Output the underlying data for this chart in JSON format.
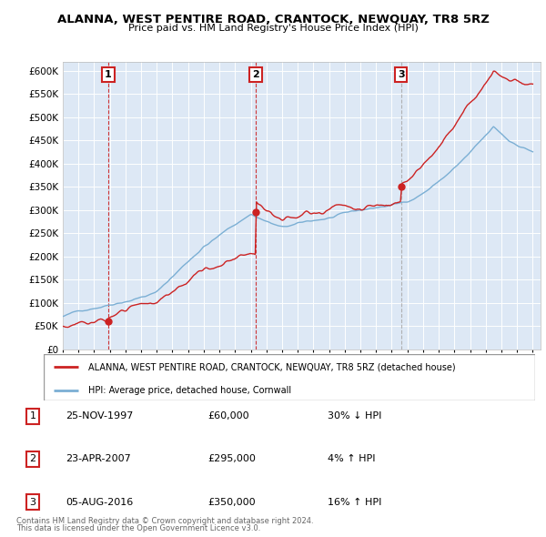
{
  "title": "ALANNA, WEST PENTIRE ROAD, CRANTOCK, NEWQUAY, TR8 5RZ",
  "subtitle": "Price paid vs. HM Land Registry's House Price Index (HPI)",
  "hpi_color": "#7bafd4",
  "price_color": "#cc2222",
  "bg_color": "#dde8f5",
  "ylim": [
    0,
    620000
  ],
  "yticks": [
    0,
    50000,
    100000,
    150000,
    200000,
    250000,
    300000,
    350000,
    400000,
    450000,
    500000,
    550000,
    600000
  ],
  "ytick_labels": [
    "£0",
    "£50K",
    "£100K",
    "£150K",
    "£200K",
    "£250K",
    "£300K",
    "£350K",
    "£400K",
    "£450K",
    "£500K",
    "£550K",
    "£600K"
  ],
  "sale_times": [
    1997.899,
    2007.31,
    2016.595
  ],
  "sale_prices": [
    60000,
    295000,
    350000
  ],
  "sale_labels": [
    "1",
    "2",
    "3"
  ],
  "vline_colors": [
    "#cc2222",
    "#cc2222",
    "#aaaaaa"
  ],
  "vline_styles": [
    "--",
    "--",
    "--"
  ],
  "legend_entries": [
    "ALANNA, WEST PENTIRE ROAD, CRANTOCK, NEWQUAY, TR8 5RZ (detached house)",
    "HPI: Average price, detached house, Cornwall"
  ],
  "table_rows": [
    [
      "1",
      "25-NOV-1997",
      "£60,000",
      "30% ↓ HPI"
    ],
    [
      "2",
      "23-APR-2007",
      "£295,000",
      "4% ↑ HPI"
    ],
    [
      "3",
      "05-AUG-2016",
      "£350,000",
      "16% ↑ HPI"
    ]
  ],
  "footnote1": "Contains HM Land Registry data © Crown copyright and database right 2024.",
  "footnote2": "This data is licensed under the Open Government Licence v3.0.",
  "xlim": [
    1995.0,
    2025.5
  ]
}
